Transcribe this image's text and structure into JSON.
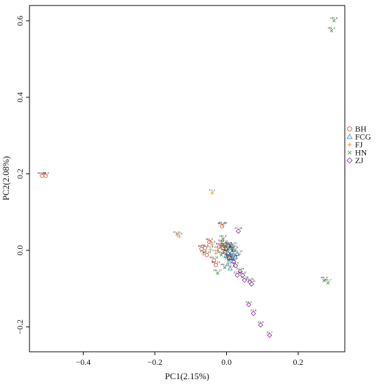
{
  "chart_data": {
    "type": "scatter",
    "title": "",
    "xlabel": "PC1(2.15%)",
    "ylabel": "PC2(2.08%)",
    "xlim": [
      -0.55,
      0.33
    ],
    "ylim": [
      -0.265,
      0.64
    ],
    "x_ticks": [
      -0.4,
      -0.2,
      0.0,
      0.2
    ],
    "x_tick_labels": [
      "−0.4",
      "−0.2",
      "0.0",
      "0.2"
    ],
    "y_ticks": [
      -0.2,
      0.0,
      0.2,
      0.4,
      0.6
    ],
    "y_tick_labels": [
      "−0.2",
      "0.0",
      "0.2",
      "0.4",
      "0.6"
    ],
    "grid": false,
    "legend_position": "right",
    "series": [
      {
        "name": "BH",
        "marker": "circle",
        "color": "#E8513B",
        "points": [
          {
            "label": "BH_16",
            "x": -0.515,
            "y": 0.195
          },
          {
            "label": "BH_9",
            "x": -0.505,
            "y": 0.195
          },
          {
            "label": "BH_20",
            "x": -0.013,
            "y": 0.063
          },
          {
            "label": "BH_3",
            "x": -0.048,
            "y": 0.022
          },
          {
            "label": "BH_5",
            "x": -0.06,
            "y": 0.006
          },
          {
            "label": "BH_7",
            "x": -0.07,
            "y": 0.004
          },
          {
            "label": "BH_12",
            "x": -0.055,
            "y": -0.012
          },
          {
            "label": "BH_18",
            "x": -0.035,
            "y": -0.026
          },
          {
            "label": "BH_13",
            "x": -0.03,
            "y": -0.038
          },
          {
            "label": "BH_1",
            "x": -0.02,
            "y": 0.01
          },
          {
            "label": "BH_2",
            "x": -0.005,
            "y": -0.005
          },
          {
            "label": "BH_4",
            "x": 0.005,
            "y": 0.012
          },
          {
            "label": "BH_6",
            "x": 0.008,
            "y": -0.02
          },
          {
            "label": "BH_8",
            "x": -0.01,
            "y": 0.005
          }
        ]
      },
      {
        "name": "FCG",
        "marker": "triangle",
        "color": "#3A8FD9",
        "points": [
          {
            "label": "FCG_12",
            "x": 0.03,
            "y": -0.01
          },
          {
            "label": "FCG_5",
            "x": 0.01,
            "y": -0.048
          },
          {
            "label": "FCG_1",
            "x": 0.0,
            "y": 0.005
          },
          {
            "label": "FCG_2",
            "x": 0.005,
            "y": -0.008
          },
          {
            "label": "FCG_3",
            "x": 0.012,
            "y": -0.02
          },
          {
            "label": "FCG_4",
            "x": 0.015,
            "y": -0.005
          },
          {
            "label": "FCG_6",
            "x": 0.02,
            "y": 0.0
          },
          {
            "label": "FCG_7",
            "x": 0.008,
            "y": -0.03
          },
          {
            "label": "FCG_8",
            "x": 0.018,
            "y": -0.022
          },
          {
            "label": "FCG_9",
            "x": -0.002,
            "y": -0.015
          },
          {
            "label": "FCG_10",
            "x": 0.025,
            "y": -0.018
          },
          {
            "label": "FCG_11",
            "x": 0.014,
            "y": 0.012
          }
        ]
      },
      {
        "name": "FJ",
        "marker": "plus",
        "color": "#E8962E",
        "points": [
          {
            "label": "FJ_1",
            "x": -0.04,
            "y": 0.15
          },
          {
            "label": "FJ_11",
            "x": -0.138,
            "y": 0.04
          },
          {
            "label": "FJ_4",
            "x": -0.132,
            "y": 0.036
          },
          {
            "label": "FJ_10",
            "x": -0.01,
            "y": 0.065
          },
          {
            "label": "FJ_2",
            "x": -0.065,
            "y": -0.01
          },
          {
            "label": "FJ_3",
            "x": -0.04,
            "y": 0.015
          },
          {
            "label": "FJ_5",
            "x": -0.025,
            "y": 0.0
          },
          {
            "label": "FJ_6",
            "x": -0.015,
            "y": 0.018
          },
          {
            "label": "FJ_7",
            "x": -0.03,
            "y": -0.008
          },
          {
            "label": "FJ_8",
            "x": -0.008,
            "y": 0.01
          },
          {
            "label": "FJ_9",
            "x": -0.045,
            "y": 0.002
          }
        ]
      },
      {
        "name": "HN",
        "marker": "cross",
        "color": "#3C9A48",
        "points": [
          {
            "label": "HN_8",
            "x": 0.3,
            "y": 0.6
          },
          {
            "label": "HN_3",
            "x": 0.293,
            "y": 0.574
          },
          {
            "label": "HN_6",
            "x": 0.272,
            "y": -0.079
          },
          {
            "label": "HN_7",
            "x": 0.283,
            "y": -0.085
          },
          {
            "label": "HN_4",
            "x": -0.01,
            "y": 0.03
          },
          {
            "label": "HN_17",
            "x": -0.025,
            "y": -0.06
          },
          {
            "label": "HN_15",
            "x": -0.005,
            "y": -0.045
          },
          {
            "label": "HN_1",
            "x": 0.0,
            "y": 0.0
          },
          {
            "label": "HN_2",
            "x": 0.01,
            "y": 0.008
          },
          {
            "label": "HN_5",
            "x": -0.015,
            "y": -0.012
          },
          {
            "label": "HN_9",
            "x": 0.005,
            "y": -0.025
          },
          {
            "label": "HN_10",
            "x": 0.015,
            "y": 0.004
          },
          {
            "label": "HN_12",
            "x": -0.008,
            "y": 0.016
          }
        ]
      },
      {
        "name": "ZJ",
        "marker": "diamond",
        "color": "#8B3A9E",
        "points": [
          {
            "label": "ZJ_18",
            "x": 0.033,
            "y": 0.05
          },
          {
            "label": "ZJ_16",
            "x": 0.038,
            "y": -0.055
          },
          {
            "label": "ZJ_17",
            "x": 0.03,
            "y": -0.065
          },
          {
            "label": "ZJ_12",
            "x": 0.045,
            "y": -0.065
          },
          {
            "label": "ZJ_13",
            "x": 0.05,
            "y": -0.078
          },
          {
            "label": "ZJ_15",
            "x": 0.065,
            "y": -0.082
          },
          {
            "label": "ZJ_14",
            "x": 0.07,
            "y": -0.088
          },
          {
            "label": "ZJ_2",
            "x": 0.062,
            "y": -0.142
          },
          {
            "label": "ZJ_6",
            "x": 0.075,
            "y": -0.165
          },
          {
            "label": "ZJ_8",
            "x": 0.095,
            "y": -0.195
          },
          {
            "label": "ZJ_7",
            "x": 0.12,
            "y": -0.222
          },
          {
            "label": "ZJ_1",
            "x": 0.02,
            "y": -0.03
          },
          {
            "label": "ZJ_3",
            "x": 0.025,
            "y": -0.04
          }
        ]
      }
    ]
  }
}
